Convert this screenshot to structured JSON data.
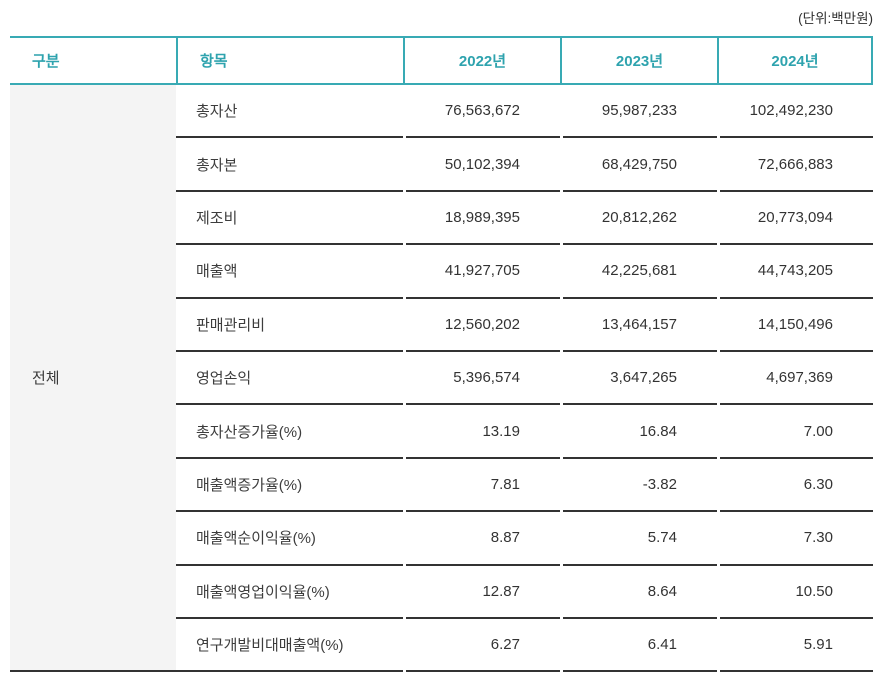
{
  "unit_label": "(단위:백만원)",
  "colors": {
    "accent_teal": "#38aab4",
    "row_border": "#333333",
    "gubun_background": "#f4f4f4"
  },
  "table": {
    "headers": {
      "gubun": "구분",
      "item": "항목",
      "year1": "2022년",
      "year2": "2023년",
      "year3": "2024년"
    },
    "group_label": "전체",
    "rows": [
      {
        "item": "총자산",
        "y2022": "76,563,672",
        "y2023": "95,987,233",
        "y2024": "102,492,230"
      },
      {
        "item": "총자본",
        "y2022": "50,102,394",
        "y2023": "68,429,750",
        "y2024": "72,666,883"
      },
      {
        "item": "제조비",
        "y2022": "18,989,395",
        "y2023": "20,812,262",
        "y2024": "20,773,094"
      },
      {
        "item": "매출액",
        "y2022": "41,927,705",
        "y2023": "42,225,681",
        "y2024": "44,743,205"
      },
      {
        "item": "판매관리비",
        "y2022": "12,560,202",
        "y2023": "13,464,157",
        "y2024": "14,150,496"
      },
      {
        "item": "영업손익",
        "y2022": "5,396,574",
        "y2023": "3,647,265",
        "y2024": "4,697,369"
      },
      {
        "item": "총자산증가율(%)",
        "y2022": "13.19",
        "y2023": "16.84",
        "y2024": "7.00"
      },
      {
        "item": "매출액증가율(%)",
        "y2022": "7.81",
        "y2023": "-3.82",
        "y2024": "6.30"
      },
      {
        "item": "매출액순이익율(%)",
        "y2022": "8.87",
        "y2023": "5.74",
        "y2024": "7.30"
      },
      {
        "item": "매출액영업이익율(%)",
        "y2022": "12.87",
        "y2023": "8.64",
        "y2024": "10.50"
      },
      {
        "item": "연구개발비대매출액(%)",
        "y2022": "6.27",
        "y2023": "6.41",
        "y2024": "5.91"
      }
    ]
  }
}
